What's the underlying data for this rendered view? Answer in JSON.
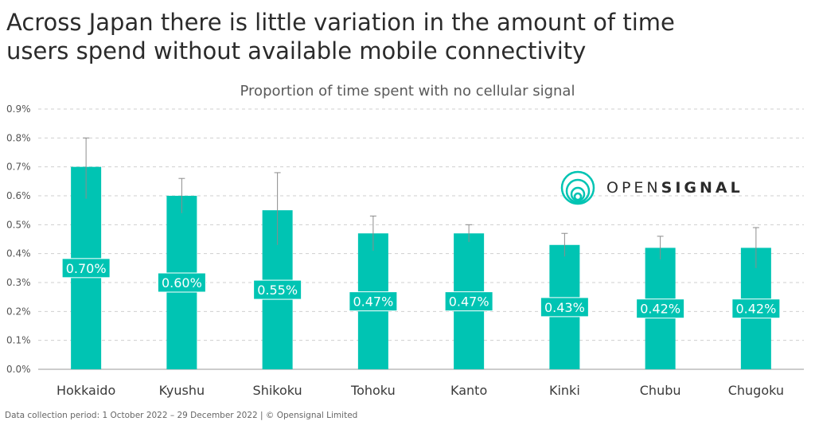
{
  "title_line1": "Across Japan there is little variation in the amount of time",
  "title_line2": "users spend without available mobile connectivity",
  "footer": "Data collection period: 1 October 2022 – 29 December 2022 | © Opensignal Limited",
  "logo": {
    "prefix": "OPEN",
    "bold": "SIGNAL"
  },
  "colors": {
    "bar": "#00c4b3",
    "label_border": "#ffffff",
    "grid": "#cfcfcf",
    "error": "#8c8c8c",
    "text": "#3a3a3a"
  },
  "chart_data": {
    "type": "bar",
    "title": "Proportion of time spent with no cellular signal",
    "categories": [
      "Hokkaido",
      "Kyushu",
      "Shikoku",
      "Tohoku",
      "Kanto",
      "Kinki",
      "Chubu",
      "Chugoku"
    ],
    "values": [
      0.7,
      0.6,
      0.55,
      0.47,
      0.47,
      0.43,
      0.42,
      0.42
    ],
    "value_labels": [
      "0.70%",
      "0.60%",
      "0.55%",
      "0.47%",
      "0.47%",
      "0.43%",
      "0.42%",
      "0.42%"
    ],
    "error_low": [
      0.59,
      0.54,
      0.43,
      0.41,
      0.44,
      0.39,
      0.38,
      0.35
    ],
    "error_high": [
      0.8,
      0.66,
      0.68,
      0.53,
      0.5,
      0.47,
      0.46,
      0.49
    ],
    "yticks": [
      "0.0%",
      "0.1%",
      "0.2%",
      "0.3%",
      "0.4%",
      "0.5%",
      "0.6%",
      "0.7%",
      "0.8%",
      "0.9%"
    ],
    "ylim": [
      0,
      0.9
    ],
    "grid": true
  }
}
